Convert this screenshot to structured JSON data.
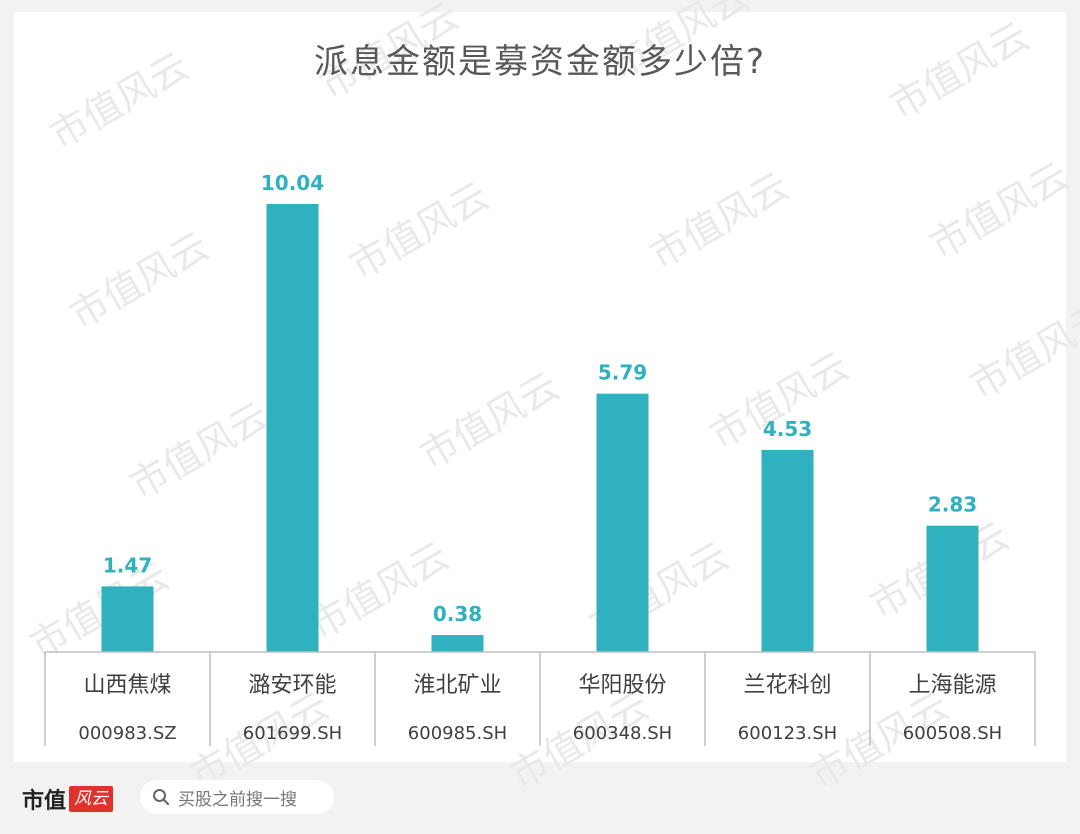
{
  "chart_data": {
    "type": "bar",
    "title": "派息金额是募资金额多少倍?",
    "categories": [
      "山西焦煤",
      "潞安环能",
      "淮北矿业",
      "华阳股份",
      "兰花科创",
      "上海能源"
    ],
    "codes": [
      "000983.SZ",
      "601699.SH",
      "600985.SH",
      "600348.SH",
      "600123.SH",
      "600508.SH"
    ],
    "values": [
      1.47,
      10.04,
      0.38,
      5.79,
      4.53,
      2.83
    ],
    "value_labels": [
      "1.47",
      "10.04",
      "0.38",
      "5.79",
      "4.53",
      "2.83"
    ],
    "ylim": [
      0,
      10.04
    ],
    "bar_color": "#2fb1bf",
    "label_color": "#2fb1bf",
    "grid": false,
    "legend": "none"
  },
  "watermark": "市值风云",
  "footer": {
    "brand_text": "市值",
    "brand_badge": "风云",
    "search_placeholder": "买股之前搜一搜",
    "search_icon": "search-icon"
  }
}
